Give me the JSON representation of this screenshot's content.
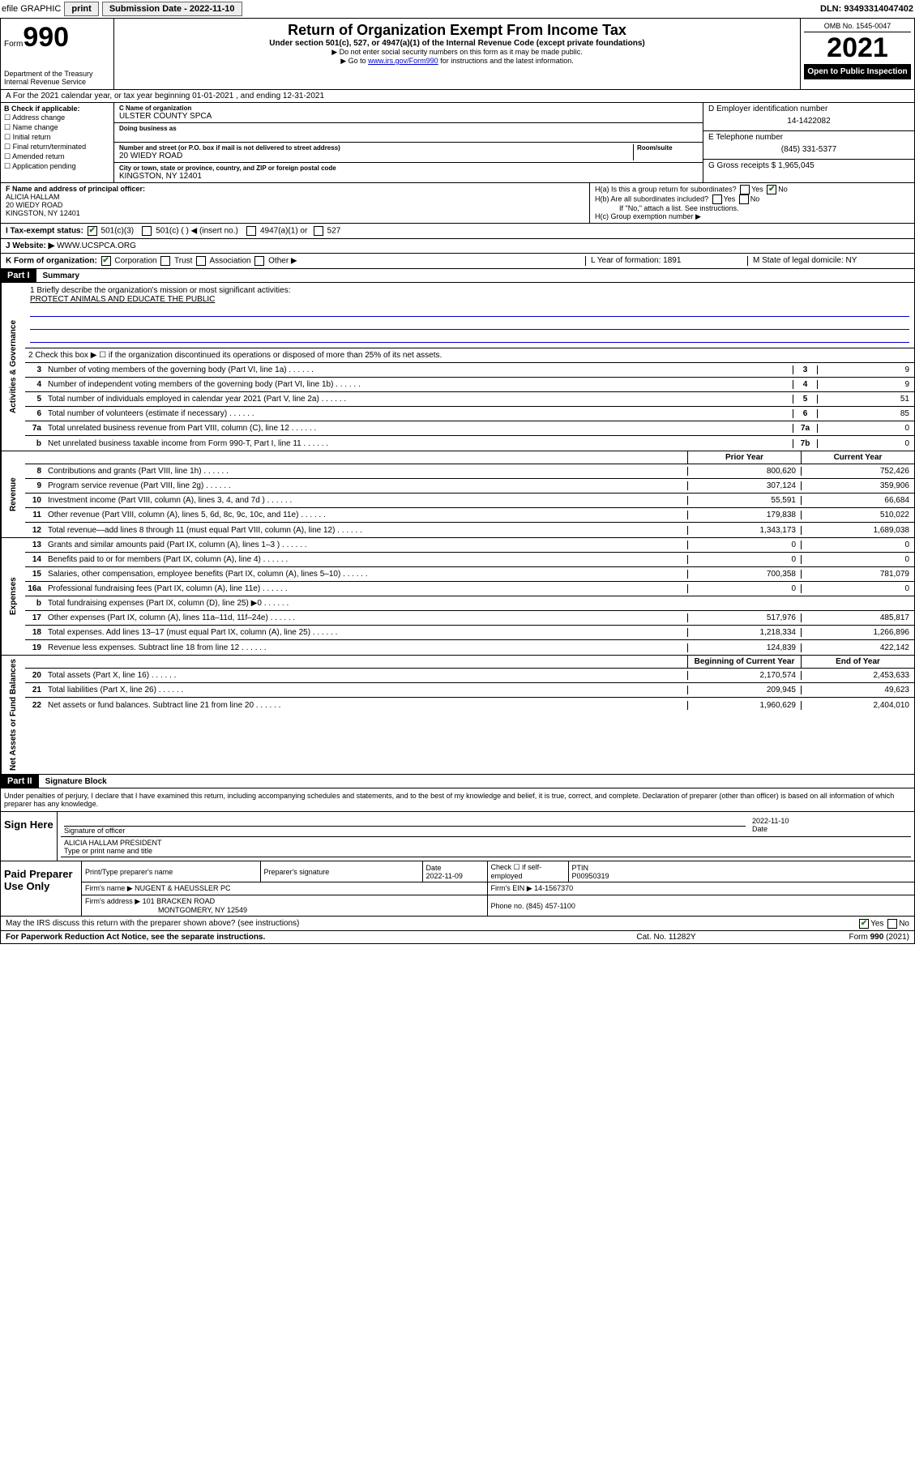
{
  "toprow": {
    "efile": "efile GRAPHIC",
    "print": "print",
    "sub_label": "Submission Date - ",
    "sub_date": "2022-11-10",
    "dln": "DLN: 93493314047402"
  },
  "header": {
    "form_label": "Form",
    "form_no": "990",
    "dept": "Department of the Treasury",
    "irs": "Internal Revenue Service",
    "title": "Return of Organization Exempt From Income Tax",
    "sub1": "Under section 501(c), 527, or 4947(a)(1) of the Internal Revenue Code (except private foundations)",
    "sub2": "▶ Do not enter social security numbers on this form as it may be made public.",
    "sub3_pre": "▶ Go to ",
    "sub3_link": "www.irs.gov/Form990",
    "sub3_post": " for instructions and the latest information.",
    "omb": "OMB No. 1545-0047",
    "year": "2021",
    "open": "Open to Public Inspection"
  },
  "row_a": "A For the 2021 calendar year, or tax year beginning 01-01-2021   , and ending 12-31-2021",
  "col_b": {
    "label": "B Check if applicable:",
    "items": [
      "Address change",
      "Name change",
      "Initial return",
      "Final return/terminated",
      "Amended return",
      "Application pending"
    ]
  },
  "col_c": {
    "name_lbl": "C Name of organization",
    "name": "ULSTER COUNTY SPCA",
    "dba_lbl": "Doing business as",
    "addr_lbl": "Number and street (or P.O. box if mail is not delivered to street address)",
    "room_lbl": "Room/suite",
    "addr": "20 WIEDY ROAD",
    "city_lbl": "City or town, state or province, country, and ZIP or foreign postal code",
    "city": "KINGSTON, NY  12401"
  },
  "col_rt": {
    "ein_lbl": "D Employer identification number",
    "ein": "14-1422082",
    "tel_lbl": "E Telephone number",
    "tel": "(845) 331-5377",
    "gross_lbl": "G Gross receipts $ ",
    "gross": "1,965,045"
  },
  "row_f": {
    "f_lbl": "F  Name and address of principal officer:",
    "f_name": "ALICIA HALLAM",
    "f_addr1": "20 WIEDY ROAD",
    "f_addr2": "KINGSTON, NY  12401",
    "ha": "H(a)  Is this a group return for subordinates?",
    "hb": "H(b)  Are all subordinates included?",
    "hb_note": "If \"No,\" attach a list. See instructions.",
    "hc": "H(c)  Group exemption number ▶"
  },
  "row_i": {
    "label": "I  Tax-exempt status:",
    "opt1": "501(c)(3)",
    "opt2": "501(c) (  ) ◀ (insert no.)",
    "opt3": "4947(a)(1) or",
    "opt4": "527"
  },
  "row_j": {
    "label": "J  Website: ▶ ",
    "val": "WWW.UCSPCA.ORG"
  },
  "row_k": {
    "k_label": "K Form of organization:",
    "k_opts": [
      "Corporation",
      "Trust",
      "Association",
      "Other ▶"
    ],
    "l": "L Year of formation: 1891",
    "m": "M State of legal domicile: NY"
  },
  "part1": {
    "title": "Part I",
    "subtitle": "Summary"
  },
  "vtabs": {
    "gov": "Activities & Governance",
    "rev": "Revenue",
    "exp": "Expenses",
    "net": "Net Assets or Fund Balances"
  },
  "mission": {
    "line1_lbl": "1  Briefly describe the organization's mission or most significant activities:",
    "text": "PROTECT ANIMALS AND EDUCATE THE PUBLIC"
  },
  "line2": "2  Check this box ▶ ☐  if the organization discontinued its operations or disposed of more than 25% of its net assets.",
  "gov_lines": [
    {
      "n": "3",
      "d": "Number of voting members of the governing body (Part VI, line 1a)",
      "box": "3",
      "v": "9"
    },
    {
      "n": "4",
      "d": "Number of independent voting members of the governing body (Part VI, line 1b)",
      "box": "4",
      "v": "9"
    },
    {
      "n": "5",
      "d": "Total number of individuals employed in calendar year 2021 (Part V, line 2a)",
      "box": "5",
      "v": "51"
    },
    {
      "n": "6",
      "d": "Total number of volunteers (estimate if necessary)",
      "box": "6",
      "v": "85"
    },
    {
      "n": "7a",
      "d": "Total unrelated business revenue from Part VIII, column (C), line 12",
      "box": "7a",
      "v": "0"
    },
    {
      "n": "b",
      "d": "Net unrelated business taxable income from Form 990-T, Part I, line 11",
      "box": "7b",
      "v": "0"
    }
  ],
  "col_headers": {
    "prior": "Prior Year",
    "current": "Current Year"
  },
  "rev_lines": [
    {
      "n": "8",
      "d": "Contributions and grants (Part VIII, line 1h)",
      "p": "800,620",
      "c": "752,426"
    },
    {
      "n": "9",
      "d": "Program service revenue (Part VIII, line 2g)",
      "p": "307,124",
      "c": "359,906"
    },
    {
      "n": "10",
      "d": "Investment income (Part VIII, column (A), lines 3, 4, and 7d )",
      "p": "55,591",
      "c": "66,684"
    },
    {
      "n": "11",
      "d": "Other revenue (Part VIII, column (A), lines 5, 6d, 8c, 9c, 10c, and 11e)",
      "p": "179,838",
      "c": "510,022"
    },
    {
      "n": "12",
      "d": "Total revenue—add lines 8 through 11 (must equal Part VIII, column (A), line 12)",
      "p": "1,343,173",
      "c": "1,689,038"
    }
  ],
  "exp_lines": [
    {
      "n": "13",
      "d": "Grants and similar amounts paid (Part IX, column (A), lines 1–3 )",
      "p": "0",
      "c": "0"
    },
    {
      "n": "14",
      "d": "Benefits paid to or for members (Part IX, column (A), line 4)",
      "p": "0",
      "c": "0"
    },
    {
      "n": "15",
      "d": "Salaries, other compensation, employee benefits (Part IX, column (A), lines 5–10)",
      "p": "700,358",
      "c": "781,079"
    },
    {
      "n": "16a",
      "d": "Professional fundraising fees (Part IX, column (A), line 11e)",
      "p": "0",
      "c": "0"
    },
    {
      "n": "b",
      "d": "Total fundraising expenses (Part IX, column (D), line 25) ▶0",
      "p": "",
      "c": "",
      "shaded": true
    },
    {
      "n": "17",
      "d": "Other expenses (Part IX, column (A), lines 11a–11d, 11f–24e)",
      "p": "517,976",
      "c": "485,817"
    },
    {
      "n": "18",
      "d": "Total expenses. Add lines 13–17 (must equal Part IX, column (A), line 25)",
      "p": "1,218,334",
      "c": "1,266,896"
    },
    {
      "n": "19",
      "d": "Revenue less expenses. Subtract line 18 from line 12",
      "p": "124,839",
      "c": "422,142"
    }
  ],
  "net_headers": {
    "begin": "Beginning of Current Year",
    "end": "End of Year"
  },
  "net_lines": [
    {
      "n": "20",
      "d": "Total assets (Part X, line 16)",
      "p": "2,170,574",
      "c": "2,453,633"
    },
    {
      "n": "21",
      "d": "Total liabilities (Part X, line 26)",
      "p": "209,945",
      "c": "49,623"
    },
    {
      "n": "22",
      "d": "Net assets or fund balances. Subtract line 21 from line 20",
      "p": "1,960,629",
      "c": "2,404,010"
    }
  ],
  "part2": {
    "title": "Part II",
    "subtitle": "Signature Block"
  },
  "penalties": "Under penalties of perjury, I declare that I have examined this return, including accompanying schedules and statements, and to the best of my knowledge and belief, it is true, correct, and complete. Declaration of preparer (other than officer) is based on all information of which preparer has any knowledge.",
  "sign": {
    "label": "Sign Here",
    "sig_lbl": "Signature of officer",
    "date_lbl": "Date",
    "date": "2022-11-10",
    "name": "ALICIA HALLAM  PRESIDENT",
    "name_lbl": "Type or print name and title"
  },
  "prep": {
    "label": "Paid Preparer Use Only",
    "h1": "Print/Type preparer's name",
    "h2": "Preparer's signature",
    "h3": "Date",
    "date": "2022-11-09",
    "h4": "Check ☐ if self-employed",
    "h5": "PTIN",
    "ptin": "P00950319",
    "firm_lbl": "Firm's name    ▶ ",
    "firm": "NUGENT & HAEUSSLER PC",
    "ein_lbl": "Firm's EIN ▶ ",
    "ein": "14-1567370",
    "addr_lbl": "Firm's address ▶ ",
    "addr1": "101 BRACKEN ROAD",
    "addr2": "MONTGOMERY, NY  12549",
    "phone_lbl": "Phone no. ",
    "phone": "(845) 457-1100"
  },
  "discuss": "May the IRS discuss this return with the preparer shown above? (see instructions)",
  "footer": {
    "f1": "For Paperwork Reduction Act Notice, see the separate instructions.",
    "f2": "Cat. No. 11282Y",
    "f3": "Form 990 (2021)"
  }
}
